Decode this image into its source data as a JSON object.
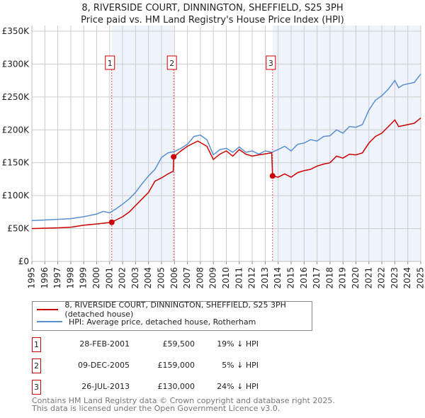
{
  "title": "8, RIVERSIDE COURT, DINNINGTON, SHEFFIELD, S25 3PH",
  "subtitle": "Price paid vs. HM Land Registry's House Price Index (HPI)",
  "legend": {
    "property": "8, RIVERSIDE COURT, DINNINGTON, SHEFFIELD, S25 3PH (detached house)",
    "hpi": "HPI: Average price, detached house, Rotherham"
  },
  "sales": [
    {
      "num": "1",
      "date": "28-FEB-2001",
      "price": "£59,500",
      "hpi": "19% ↓ HPI"
    },
    {
      "num": "2",
      "date": "09-DEC-2005",
      "price": "£159,000",
      "hpi": "5% ↓ HPI"
    },
    {
      "num": "3",
      "date": "26-JUL-2013",
      "price": "£130,000",
      "hpi": "24% ↓ HPI"
    }
  ],
  "footer": {
    "line1": "Contains HM Land Registry data © Crown copyright and database right 2025.",
    "line2": "This data is licensed under the Open Government Licence v3.0."
  },
  "chart_data": {
    "type": "line",
    "xlim": [
      1995,
      2025
    ],
    "ylim": [
      0,
      350000
    ],
    "x_ticks": [
      "1995",
      "1996",
      "1997",
      "1998",
      "1999",
      "2000",
      "2001",
      "2002",
      "2003",
      "2004",
      "2005",
      "2006",
      "2007",
      "2008",
      "2009",
      "2010",
      "2011",
      "2012",
      "2013",
      "2014",
      "2015",
      "2016",
      "2017",
      "2018",
      "2019",
      "2020",
      "2021",
      "2022",
      "2023",
      "2024",
      "2025"
    ],
    "y_ticks": [
      {
        "v": 0,
        "label": "£0"
      },
      {
        "v": 50000,
        "label": "£50K"
      },
      {
        "v": 100000,
        "label": "£100K"
      },
      {
        "v": 150000,
        "label": "£150K"
      },
      {
        "v": 200000,
        "label": "£200K"
      },
      {
        "v": 250000,
        "label": "£250K"
      },
      {
        "v": 300000,
        "label": "£300K"
      },
      {
        "v": 350000,
        "label": "£350K"
      }
    ],
    "grid": true,
    "colors": {
      "property": "#cc0000",
      "hpi": "#5b8fd0",
      "shade": "#eef3fc"
    },
    "markers": [
      {
        "label": "1",
        "x": 2001.16,
        "y": 59500
      },
      {
        "label": "2",
        "x": 2005.94,
        "y": 159000
      },
      {
        "label": "3",
        "x": 2013.57,
        "y": 130000
      }
    ],
    "series": [
      {
        "name": "hpi",
        "points": [
          [
            1995,
            62000
          ],
          [
            1996,
            63000
          ],
          [
            1997,
            64000
          ],
          [
            1998,
            65000
          ],
          [
            1999,
            68000
          ],
          [
            2000,
            72000
          ],
          [
            2000.5,
            76000
          ],
          [
            2001,
            74000
          ],
          [
            2001.5,
            80000
          ],
          [
            2002,
            87000
          ],
          [
            2002.5,
            95000
          ],
          [
            2003,
            105000
          ],
          [
            2003.5,
            118000
          ],
          [
            2004,
            130000
          ],
          [
            2004.5,
            140000
          ],
          [
            2005,
            158000
          ],
          [
            2005.5,
            165000
          ],
          [
            2006,
            167000
          ],
          [
            2006.5,
            172000
          ],
          [
            2007,
            178000
          ],
          [
            2007.5,
            190000
          ],
          [
            2008,
            192000
          ],
          [
            2008.5,
            185000
          ],
          [
            2009,
            162000
          ],
          [
            2009.5,
            170000
          ],
          [
            2010,
            172000
          ],
          [
            2010.5,
            166000
          ],
          [
            2011,
            174000
          ],
          [
            2011.5,
            166000
          ],
          [
            2012,
            168000
          ],
          [
            2012.5,
            163000
          ],
          [
            2013,
            168000
          ],
          [
            2013.5,
            166000
          ],
          [
            2014,
            170000
          ],
          [
            2014.5,
            175000
          ],
          [
            2015,
            168000
          ],
          [
            2015.5,
            178000
          ],
          [
            2016,
            180000
          ],
          [
            2016.5,
            185000
          ],
          [
            2017,
            183000
          ],
          [
            2017.5,
            190000
          ],
          [
            2018,
            191000
          ],
          [
            2018.5,
            200000
          ],
          [
            2019,
            195000
          ],
          [
            2019.5,
            205000
          ],
          [
            2020,
            204000
          ],
          [
            2020.5,
            208000
          ],
          [
            2021,
            230000
          ],
          [
            2021.5,
            245000
          ],
          [
            2022,
            252000
          ],
          [
            2022.5,
            262000
          ],
          [
            2023,
            275000
          ],
          [
            2023.3,
            264000
          ],
          [
            2023.6,
            268000
          ],
          [
            2024,
            270000
          ],
          [
            2024.5,
            272000
          ],
          [
            2025,
            285000
          ]
        ]
      },
      {
        "name": "property",
        "points": [
          [
            1995,
            50000
          ],
          [
            1996,
            50500
          ],
          [
            1997,
            51000
          ],
          [
            1998,
            52000
          ],
          [
            1999,
            55000
          ],
          [
            2000,
            57000
          ],
          [
            2001.16,
            59500
          ],
          [
            2001.5,
            63000
          ],
          [
            2002,
            68000
          ],
          [
            2002.5,
            75000
          ],
          [
            2003,
            85000
          ],
          [
            2003.5,
            95000
          ],
          [
            2004,
            105000
          ],
          [
            2004.5,
            122000
          ],
          [
            2005,
            127000
          ],
          [
            2005.5,
            133000
          ],
          [
            2005.9,
            137000
          ],
          [
            2005.94,
            159000
          ],
          [
            2006.5,
            168000
          ],
          [
            2007,
            175000
          ],
          [
            2007.8,
            183000
          ],
          [
            2008.5,
            175000
          ],
          [
            2009,
            155000
          ],
          [
            2009.5,
            163000
          ],
          [
            2010,
            168000
          ],
          [
            2010.5,
            160000
          ],
          [
            2011,
            170000
          ],
          [
            2011.5,
            163000
          ],
          [
            2012,
            160000
          ],
          [
            2012.5,
            162000
          ],
          [
            2013.5,
            165000
          ],
          [
            2013.57,
            130000
          ],
          [
            2014,
            128000
          ],
          [
            2014.5,
            133000
          ],
          [
            2015,
            128000
          ],
          [
            2015.5,
            135000
          ],
          [
            2016,
            138000
          ],
          [
            2016.5,
            140000
          ],
          [
            2017,
            145000
          ],
          [
            2017.5,
            148000
          ],
          [
            2018,
            150000
          ],
          [
            2018.5,
            160000
          ],
          [
            2019,
            157000
          ],
          [
            2019.5,
            163000
          ],
          [
            2020,
            162000
          ],
          [
            2020.5,
            165000
          ],
          [
            2021,
            180000
          ],
          [
            2021.5,
            190000
          ],
          [
            2022,
            195000
          ],
          [
            2022.5,
            205000
          ],
          [
            2023,
            215000
          ],
          [
            2023.3,
            205000
          ],
          [
            2024,
            208000
          ],
          [
            2024.5,
            210000
          ],
          [
            2025,
            218000
          ]
        ]
      }
    ]
  }
}
